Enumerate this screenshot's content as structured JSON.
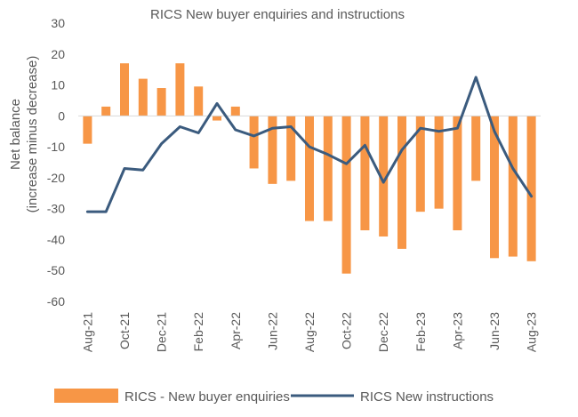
{
  "chart_data": {
    "type": "bar+line",
    "title": "RICS New buyer enquiries and instructions",
    "ylabel": [
      "Net balance",
      "(increase minus decrease)"
    ],
    "xlabel": "",
    "ylim": [
      -60,
      30
    ],
    "yticks": [
      -60,
      -50,
      -40,
      -30,
      -20,
      -10,
      0,
      10,
      20,
      30
    ],
    "grid": false,
    "legend_position": "bottom",
    "categories": [
      "Aug-21",
      "Sep-21",
      "Oct-21",
      "Nov-21",
      "Dec-21",
      "Jan-22",
      "Feb-22",
      "Mar-22",
      "Apr-22",
      "May-22",
      "Jun-22",
      "Jul-22",
      "Aug-22",
      "Sep-22",
      "Oct-22",
      "Nov-22",
      "Dec-22",
      "Jan-23",
      "Feb-23",
      "Mar-23",
      "Apr-23",
      "May-23",
      "Jun-23",
      "Jul-23",
      "Aug-23"
    ],
    "xtick_labels": [
      "Aug-21",
      "Oct-21",
      "Dec-21",
      "Feb-22",
      "Apr-22",
      "Jun-22",
      "Aug-22",
      "Oct-22",
      "Dec-22",
      "Feb-23",
      "Apr-23",
      "Jun-23",
      "Aug-23"
    ],
    "series": [
      {
        "name": "RICS  - New buyer enquiries",
        "type": "bar",
        "color": "#f79646",
        "values": [
          -9,
          3,
          17,
          12,
          9,
          17,
          9.5,
          -1.5,
          3,
          -17,
          -22,
          -21,
          -34,
          -34,
          -51,
          -37,
          -39,
          -43,
          -31,
          -30,
          -37,
          -21,
          -46,
          -45.5,
          -47
        ]
      },
      {
        "name": "RICS New instructions",
        "type": "line",
        "color": "#3b5b7e",
        "values": [
          -31,
          -31,
          -17,
          -17.5,
          -9,
          -3.5,
          -5.5,
          4,
          -4.5,
          -6.5,
          -4,
          -3.5,
          -10,
          -12.5,
          -15.5,
          -9.5,
          -21.5,
          -11,
          -4,
          -5,
          -4,
          12.5,
          -5,
          -17,
          -26
        ]
      }
    ]
  }
}
